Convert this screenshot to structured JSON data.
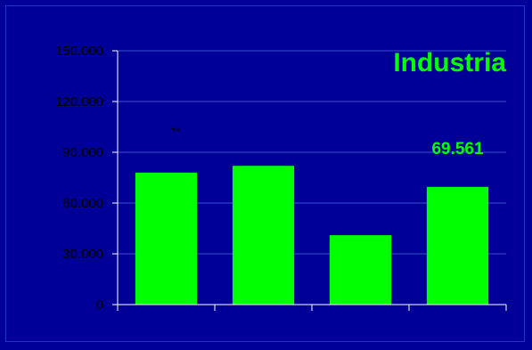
{
  "chart_data": {
    "type": "bar",
    "title": "Industria",
    "categories": [
      "",
      "",
      "",
      ""
    ],
    "values": [
      78000,
      82000,
      41000,
      69561
    ],
    "ylim": [
      0,
      150000
    ],
    "yticks": [
      "0",
      "30.000",
      "60.000",
      "90.000",
      "120.000",
      "150.000"
    ],
    "ytick_values": [
      0,
      30000,
      60000,
      90000,
      120000,
      150000
    ],
    "data_labels": [
      "",
      "",
      "",
      "69.561"
    ],
    "annotation": "**",
    "grid": true,
    "colors": {
      "background": "#000099",
      "bar": "#00ff00",
      "title": "#00ff00",
      "data_label": "#00ff00",
      "axis": "#ffffff",
      "grid": "#3a52d0",
      "tick_text": "#000000",
      "annotation": "#000000"
    }
  }
}
